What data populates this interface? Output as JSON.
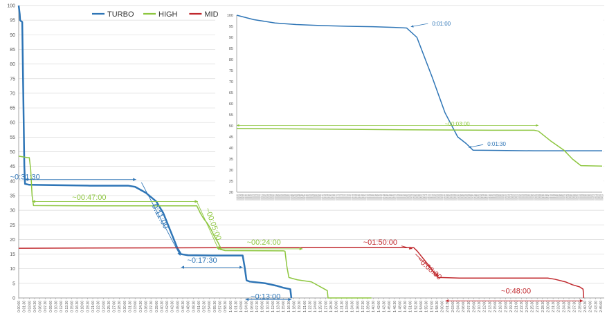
{
  "chart_data": [
    {
      "type": "line",
      "title": "",
      "xlabel": "",
      "ylabel": "",
      "ylim": [
        0,
        100
      ],
      "yticks": [
        0,
        5,
        10,
        15,
        20,
        25,
        30,
        35,
        40,
        45,
        50,
        55,
        60,
        65,
        70,
        75,
        80,
        85,
        90,
        95,
        100
      ],
      "xlim_minutes": [
        0,
        166
      ],
      "xtick_step_minutes": 1.5,
      "xtick_count": 111,
      "x_tick_format": "h:mm:ss",
      "grid": true,
      "legend_position": "top-left",
      "series": [
        {
          "name": "TURBO",
          "color": "#2e75b6",
          "line_width": 2.5,
          "points_minutes_percent": [
            [
              0,
              100
            ],
            [
              0.3,
              97
            ],
            [
              0.4,
              95
            ],
            [
              0.7,
              94.6
            ],
            [
              1.0,
              94.4
            ],
            [
              1.3,
              70
            ],
            [
              1.6,
              45
            ],
            [
              1.8,
              39
            ],
            [
              3,
              38.7
            ],
            [
              20,
              38.4
            ],
            [
              31,
              38.4
            ],
            [
              33,
              38
            ],
            [
              36,
              36
            ],
            [
              37,
              35
            ],
            [
              38,
              34
            ],
            [
              39,
              33
            ],
            [
              40,
              31
            ],
            [
              41,
              29
            ],
            [
              42,
              26
            ],
            [
              43,
              23
            ],
            [
              44,
              20
            ],
            [
              45,
              17
            ],
            [
              46,
              15
            ],
            [
              48,
              14.6
            ],
            [
              55,
              14.5
            ],
            [
              62,
              14.5
            ],
            [
              63.5,
              14.5
            ],
            [
              64,
              11
            ],
            [
              64.6,
              6
            ],
            [
              65.5,
              5.6
            ],
            [
              70,
              5
            ],
            [
              73,
              4.2
            ],
            [
              75,
              3.5
            ],
            [
              77,
              3
            ],
            [
              77.3,
              0
            ]
          ]
        },
        {
          "name": "HIGH",
          "color": "#8dc63f",
          "line_width": 1.5,
          "points_minutes_percent": [
            [
              0,
              48.5
            ],
            [
              2.5,
              48
            ],
            [
              3,
              48
            ],
            [
              3.4,
              44
            ],
            [
              3.8,
              35
            ],
            [
              4.2,
              31.6
            ],
            [
              20,
              31.5
            ],
            [
              50.5,
              31.5
            ],
            [
              51.5,
              29
            ],
            [
              52.5,
              27
            ],
            [
              53.5,
              25.5
            ],
            [
              54.5,
              23.5
            ],
            [
              55.5,
              21
            ],
            [
              56.5,
              19
            ],
            [
              57.5,
              16.5
            ],
            [
              58.5,
              16.2
            ],
            [
              75,
              16.1
            ],
            [
              75.5,
              16
            ],
            [
              76,
              11
            ],
            [
              76.6,
              7
            ],
            [
              79,
              6.2
            ],
            [
              83,
              5.5
            ],
            [
              86,
              3.5
            ],
            [
              87.5,
              2.5
            ],
            [
              87.7,
              0
            ],
            [
              100,
              0
            ]
          ]
        },
        {
          "name": "MID",
          "color": "#c0282d",
          "line_width": 1.5,
          "points_minutes_percent": [
            [
              0,
              17
            ],
            [
              60,
              17.2
            ],
            [
              110,
              17.2
            ],
            [
              112,
              17.2
            ],
            [
              113,
              16
            ],
            [
              114,
              14.5
            ],
            [
              115,
              13
            ],
            [
              116,
              11.5
            ],
            [
              117,
              10
            ],
            [
              118,
              8
            ],
            [
              119,
              7
            ],
            [
              125,
              6.8
            ],
            [
              145,
              6.8
            ],
            [
              150,
              6.8
            ],
            [
              152,
              6.4
            ],
            [
              155,
              5.5
            ],
            [
              157,
              4.5
            ],
            [
              159,
              3.8
            ],
            [
              160,
              3
            ],
            [
              160.2,
              0
            ]
          ]
        }
      ],
      "annotations": [
        {
          "text": "~0:31:30",
          "color": "#2e75b6",
          "x_min": 1.8,
          "y": 40.5,
          "angle": 0,
          "arrow_x": [
            1.8,
            33.3
          ],
          "arrow_y": [
            40.5,
            40.5
          ],
          "font_size": 11
        },
        {
          "text": "0:11:00",
          "color": "#2e75b6",
          "x_min": 39.5,
          "y": 27.5,
          "angle": 62,
          "arrow_x": [
            34.8,
            45.8
          ],
          "arrow_y": [
            39.5,
            14.5
          ],
          "font_size": 12
        },
        {
          "text": "~0:17:30",
          "color": "#2e75b6",
          "x_min": 52,
          "y": 12,
          "angle": 0,
          "arrow_x": [
            46,
            63.5
          ],
          "arrow_y": [
            10.5,
            10.5
          ],
          "font_size": 11
        },
        {
          "text": "~0:13:00",
          "color": "#2e75b6",
          "x_min": 70,
          "y": -0.3,
          "angle": 0,
          "arrow_x": [
            64.3,
            77.3
          ],
          "arrow_y": [
            -0.5,
            -0.5
          ],
          "font_size": 11
        },
        {
          "text": "~00:47:00",
          "color": "#8dc63f",
          "x_min": 20,
          "y": 33.6,
          "angle": 0,
          "arrow_x": [
            3.8,
            50.8
          ],
          "arrow_y": [
            33,
            33
          ],
          "font_size": 11
        },
        {
          "text": "~00:05:00",
          "color": "#8dc63f",
          "x_min": 54.5,
          "y": 25,
          "angle": 70,
          "arrow_x": [
            50.5,
            56.7
          ],
          "arrow_y": [
            33,
            16.5
          ],
          "font_size": 11
        },
        {
          "text": "~00:24:00",
          "color": "#8dc63f",
          "x_min": 69.5,
          "y": 18.2,
          "angle": 0,
          "arrow_x": [
            56.5,
            80.5
          ],
          "arrow_y": [
            16.8,
            16.8
          ],
          "font_size": 11
        },
        {
          "text": "~01:50:00",
          "color": "#c0282d",
          "x_min": 102.5,
          "y": 18.2,
          "angle": 0,
          "arrow_x": [
            108.5,
            111.6
          ],
          "arrow_y": [
            17.8,
            16.8
          ],
          "font_size": 11
        },
        {
          "text": "~0:08:00",
          "color": "#c0282d",
          "x_min": 116,
          "y": 9.5,
          "angle": 42,
          "arrow_x": [
            112.5,
            119
          ],
          "arrow_y": [
            15,
            7.5
          ],
          "font_size": 11
        },
        {
          "text": "~0:48:00",
          "color": "#c0282d",
          "x_min": 141,
          "y": 1.5,
          "angle": 0,
          "arrow_x": [
            121,
            160
          ],
          "arrow_y": [
            -1,
            -1
          ],
          "font_size": 11
        }
      ]
    },
    {
      "type": "line",
      "title": "",
      "inset": true,
      "ylim": [
        20,
        100
      ],
      "yticks": [
        20,
        25,
        30,
        35,
        40,
        45,
        50,
        55,
        60,
        65,
        70,
        75,
        80,
        85,
        90,
        95,
        100
      ],
      "xlim_minutes": [
        0,
        4.3
      ],
      "xtick_step_seconds": 1,
      "x_tick_format": "h:mm:ss",
      "grid": false,
      "series": [
        {
          "name": "TURBO",
          "color": "#2e75b6",
          "line_width": 1.5,
          "points_minutes_percent": [
            [
              0,
              100
            ],
            [
              0.2,
              98
            ],
            [
              0.45,
              96.5
            ],
            [
              0.7,
              95.8
            ],
            [
              1.0,
              95.3
            ],
            [
              1.3,
              95
            ],
            [
              1.6,
              94.8
            ],
            [
              1.85,
              94.5
            ],
            [
              2.0,
              94.2
            ],
            [
              2.12,
              90
            ],
            [
              2.3,
              72
            ],
            [
              2.45,
              56
            ],
            [
              2.6,
              45
            ],
            [
              2.7,
              42
            ],
            [
              2.78,
              39
            ],
            [
              3.0,
              38.9
            ],
            [
              3.5,
              38.7
            ],
            [
              4.0,
              38.7
            ],
            [
              4.3,
              38.7
            ]
          ]
        },
        {
          "name": "HIGH",
          "color": "#8dc63f",
          "line_width": 1.5,
          "points_minutes_percent": [
            [
              0,
              48.8
            ],
            [
              1,
              48.5
            ],
            [
              2,
              48.2
            ],
            [
              3,
              48
            ],
            [
              3.5,
              48
            ],
            [
              3.55,
              47.6
            ],
            [
              3.7,
              43
            ],
            [
              3.85,
              39
            ],
            [
              3.95,
              35
            ],
            [
              4.05,
              32
            ],
            [
              4.3,
              31.8
            ]
          ]
        }
      ],
      "annotations": [
        {
          "text": "0:01:00",
          "color": "#2e75b6",
          "x_min": 2.3,
          "y": 96.2,
          "arrow_x": [
            2.25,
            2.05
          ],
          "arrow_y": [
            96.2,
            94.8
          ]
        },
        {
          "text": "0:01:30",
          "color": "#2e75b6",
          "x_min": 2.95,
          "y": 41.8,
          "arrow_x": [
            2.9,
            2.73
          ],
          "arrow_y": [
            41.5,
            40.2
          ]
        },
        {
          "text": "~00:03:00",
          "color": "#8dc63f",
          "x_min": 2.45,
          "y": 51,
          "arrow_x": [
            0,
            3.55
          ],
          "arrow_y": [
            50.2,
            50.2
          ]
        }
      ]
    }
  ]
}
